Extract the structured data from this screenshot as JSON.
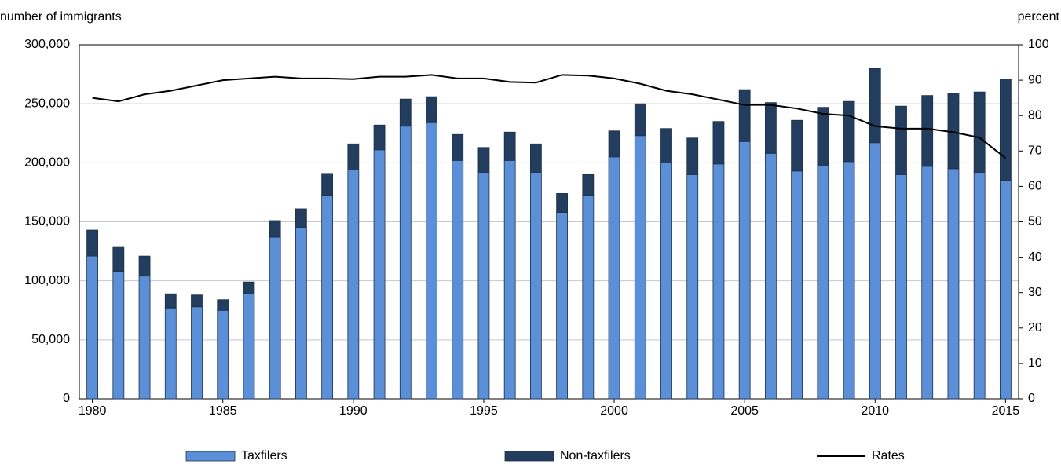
{
  "chart_data": {
    "type": "bar",
    "stacked": true,
    "y_label": "number of immigrants",
    "y2_label": "percent",
    "x": [
      1980,
      1981,
      1982,
      1983,
      1984,
      1985,
      1986,
      1987,
      1988,
      1989,
      1990,
      1991,
      1992,
      1993,
      1994,
      1995,
      1996,
      1997,
      1998,
      1999,
      2000,
      2001,
      2002,
      2003,
      2004,
      2005,
      2006,
      2007,
      2008,
      2009,
      2010,
      2011,
      2012,
      2013,
      2014,
      2015
    ],
    "xlim": [
      1979.5,
      2015.5
    ],
    "xticks": [
      1980,
      1985,
      1990,
      1995,
      2000,
      2005,
      2010,
      2015
    ],
    "ylim": [
      0,
      300000
    ],
    "yticks": [
      0,
      {
        "value": 50000,
        "label": "50,000"
      },
      {
        "value": 100000,
        "label": "100,000"
      },
      {
        "value": 150000,
        "label": "150,000"
      },
      {
        "value": 200000,
        "label": "200,000"
      },
      {
        "value": 250000,
        "label": "250,000"
      },
      {
        "value": 300000,
        "label": "300,000"
      }
    ],
    "y2lim": [
      0,
      100
    ],
    "y2ticks": [
      0,
      10,
      20,
      30,
      40,
      50,
      60,
      70,
      80,
      90,
      100
    ],
    "grid": true,
    "legend": "bottom",
    "series": [
      {
        "name": "Taxfilers",
        "color": "#5b8fd8",
        "values": [
          121000,
          108000,
          104000,
          77000,
          78000,
          75000,
          89000,
          137000,
          145000,
          172000,
          194000,
          211000,
          231000,
          234000,
          202000,
          192000,
          202000,
          192000,
          158000,
          172000,
          205000,
          223000,
          200000,
          190000,
          199000,
          218000,
          208000,
          193000,
          198000,
          201000,
          217000,
          190000,
          197000,
          195000,
          192000,
          185000
        ]
      },
      {
        "name": "Non-taxfilers",
        "color": "#233d5e",
        "values": [
          22000,
          21000,
          17000,
          12000,
          10000,
          9000,
          10000,
          14000,
          16000,
          19000,
          22000,
          21000,
          23000,
          22000,
          22000,
          21000,
          24000,
          24000,
          16000,
          18000,
          22000,
          27000,
          29000,
          31000,
          36000,
          44000,
          43000,
          43000,
          49000,
          51000,
          63000,
          58000,
          60000,
          64000,
          68000,
          86000
        ]
      },
      {
        "name": "Rates",
        "type": "line",
        "axis": "y2",
        "color": "#000000",
        "values": [
          85,
          84,
          86,
          87,
          88.5,
          90,
          90.5,
          91,
          90.5,
          90.5,
          90.3,
          91,
          91,
          91.5,
          90.5,
          90.5,
          89.5,
          89.3,
          91.5,
          91.3,
          90.5,
          89,
          87,
          86,
          84.5,
          83,
          83,
          82,
          80.5,
          80,
          77,
          76.3,
          76.3,
          75.3,
          73.8,
          68
        ]
      }
    ]
  }
}
